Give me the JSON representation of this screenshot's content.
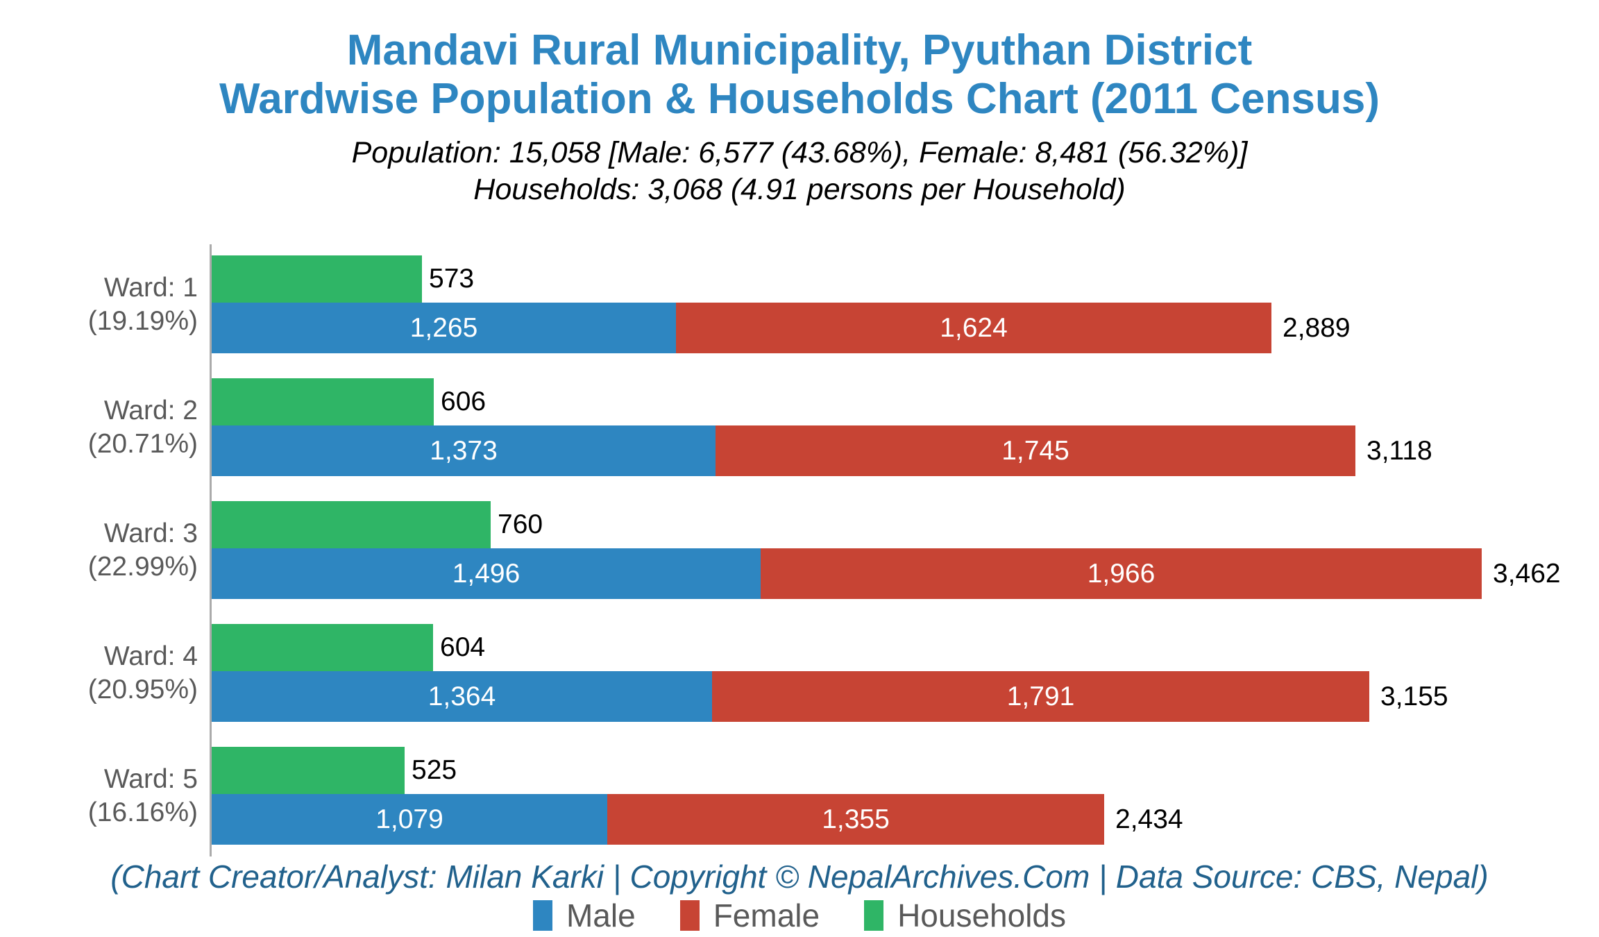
{
  "title": {
    "line1": "Mandavi Rural Municipality, Pyuthan District",
    "line2": "Wardwise Population & Households Chart (2011 Census)"
  },
  "subtitle": {
    "line1": "Population: 15,058 [Male: 6,577 (43.68%), Female: 8,481 (56.32%)]",
    "line2": "Households: 3,068 (4.91 persons per Household)"
  },
  "footer": "(Chart Creator/Analyst: Milan Karki | Copyright © NepalArchives.Com | Data Source: CBS, Nepal)",
  "colors": {
    "male": "#2E86C1",
    "female": "#C74434",
    "households": "#2FB566",
    "title": "#2E86C1",
    "footer": "#21618C",
    "axis": "#ABABAB",
    "category_label": "#595959"
  },
  "legend": {
    "items": [
      {
        "label": "Male",
        "color": "#2E86C1"
      },
      {
        "label": "Female",
        "color": "#C74434"
      },
      {
        "label": "Households",
        "color": "#2FB566"
      }
    ]
  },
  "chart_data": {
    "type": "bar",
    "orientation": "horizontal",
    "stacked": true,
    "grid": false,
    "legend_position": "bottom",
    "title": "Mandavi Rural Municipality, Pyuthan District — Wardwise Population & Households Chart (2011 Census)",
    "series_names": [
      "Male",
      "Female",
      "Households"
    ],
    "categories": [
      "Ward: 1 (19.19%)",
      "Ward: 2 (20.71%)",
      "Ward: 3 (22.99%)",
      "Ward: 4 (20.95%)",
      "Ward: 5 (16.16%)"
    ],
    "series": [
      {
        "name": "Male",
        "values": [
          1265,
          1373,
          1496,
          1364,
          1079
        ]
      },
      {
        "name": "Female",
        "values": [
          1624,
          1745,
          1966,
          1791,
          1355
        ]
      },
      {
        "name": "Households",
        "values": [
          573,
          606,
          760,
          604,
          525
        ]
      }
    ],
    "wards": [
      {
        "label_line1": "Ward: 1",
        "label_line2": "(19.19%)",
        "male": 1265,
        "male_label": "1,265",
        "female": 1624,
        "female_label": "1,624",
        "households": 573,
        "households_label": "573",
        "total": 2889,
        "total_label": "2,889"
      },
      {
        "label_line1": "Ward: 2",
        "label_line2": "(20.71%)",
        "male": 1373,
        "male_label": "1,373",
        "female": 1745,
        "female_label": "1,745",
        "households": 606,
        "households_label": "606",
        "total": 3118,
        "total_label": "3,118"
      },
      {
        "label_line1": "Ward: 3",
        "label_line2": "(22.99%)",
        "male": 1496,
        "male_label": "1,496",
        "female": 1966,
        "female_label": "1,966",
        "households": 760,
        "households_label": "760",
        "total": 3462,
        "total_label": "3,462"
      },
      {
        "label_line1": "Ward: 4",
        "label_line2": "(20.95%)",
        "male": 1364,
        "male_label": "1,364",
        "female": 1791,
        "female_label": "1,791",
        "households": 604,
        "households_label": "604",
        "total": 3155,
        "total_label": "3,155"
      },
      {
        "label_line1": "Ward: 5",
        "label_line2": "(16.16%)",
        "male": 1079,
        "male_label": "1,079",
        "female": 1355,
        "female_label": "1,355",
        "households": 525,
        "households_label": "525",
        "total": 2434,
        "total_label": "2,434"
      }
    ],
    "summary": {
      "population": 15058,
      "male": 6577,
      "male_pct": "43.68%",
      "female": 8481,
      "female_pct": "56.32%",
      "households": 3068,
      "persons_per_household": 4.91
    }
  }
}
